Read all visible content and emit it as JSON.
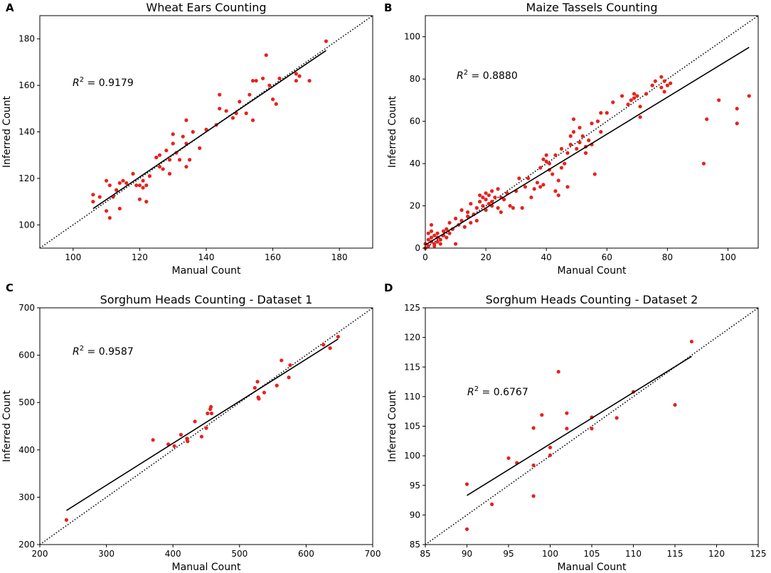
{
  "chart_data": [
    {
      "panel": "A",
      "type": "scatter",
      "title": "Wheat Ears Counting",
      "xlabel": "Manual Count",
      "ylabel": "Inferred Count",
      "xlim": [
        90,
        190
      ],
      "ylim": [
        90,
        190
      ],
      "xticks": [
        100,
        120,
        140,
        160,
        180
      ],
      "yticks": [
        100,
        120,
        140,
        160,
        180
      ],
      "r2_label": "R",
      "r2_sup": "2",
      "r2_value": " = 0.9179",
      "fit_line": [
        [
          106,
          107
        ],
        [
          176,
          175
        ]
      ],
      "identity_line": true,
      "points": [
        [
          106,
          113
        ],
        [
          106,
          110
        ],
        [
          108,
          112
        ],
        [
          110,
          119
        ],
        [
          110,
          106
        ],
        [
          111,
          103
        ],
        [
          111,
          117
        ],
        [
          112,
          112
        ],
        [
          113,
          115
        ],
        [
          114,
          107
        ],
        [
          114,
          118
        ],
        [
          115,
          119
        ],
        [
          116,
          118
        ],
        [
          118,
          122
        ],
        [
          119,
          117
        ],
        [
          120,
          117
        ],
        [
          120,
          111
        ],
        [
          121,
          119
        ],
        [
          121,
          116
        ],
        [
          122,
          117
        ],
        [
          122,
          110
        ],
        [
          123,
          121
        ],
        [
          125,
          129
        ],
        [
          125,
          129
        ],
        [
          126,
          125
        ],
        [
          126,
          130
        ],
        [
          127,
          124
        ],
        [
          128,
          132
        ],
        [
          129,
          122
        ],
        [
          129,
          128
        ],
        [
          130,
          135
        ],
        [
          130,
          139
        ],
        [
          131,
          131
        ],
        [
          132,
          128
        ],
        [
          133,
          138
        ],
        [
          134,
          125
        ],
        [
          134,
          145
        ],
        [
          134,
          135
        ],
        [
          135,
          128
        ],
        [
          136,
          140
        ],
        [
          138,
          133
        ],
        [
          140,
          141
        ],
        [
          143,
          143
        ],
        [
          144,
          156
        ],
        [
          144,
          150
        ],
        [
          146,
          149
        ],
        [
          148,
          146
        ],
        [
          149,
          148
        ],
        [
          150,
          153
        ],
        [
          152,
          148
        ],
        [
          153,
          156
        ],
        [
          154,
          145
        ],
        [
          154,
          162
        ],
        [
          155,
          162
        ],
        [
          157,
          163
        ],
        [
          158,
          173
        ],
        [
          159,
          160
        ],
        [
          160,
          154
        ],
        [
          161,
          152
        ],
        [
          162,
          163
        ],
        [
          167,
          165
        ],
        [
          167,
          162
        ],
        [
          168,
          164
        ],
        [
          171,
          162
        ],
        [
          176,
          179
        ]
      ]
    },
    {
      "panel": "B",
      "type": "scatter",
      "title": "Maize Tassels Counting",
      "xlabel": "Manual Count",
      "ylabel": "Inferred Count",
      "xlim": [
        0,
        110
      ],
      "ylim": [
        0,
        110
      ],
      "xticks": [
        0,
        20,
        40,
        60,
        80,
        100
      ],
      "yticks": [
        0,
        20,
        40,
        60,
        80,
        100
      ],
      "r2_label": "R",
      "r2_sup": "2",
      "r2_value": " = 0.8880",
      "fit_line": [
        [
          0,
          1.5
        ],
        [
          107,
          95
        ]
      ],
      "identity_line": true,
      "points": [
        [
          0,
          0
        ],
        [
          0,
          2
        ],
        [
          1,
          1
        ],
        [
          1,
          4
        ],
        [
          1,
          7
        ],
        [
          2,
          3
        ],
        [
          2,
          5
        ],
        [
          2,
          8
        ],
        [
          2,
          11
        ],
        [
          3,
          2
        ],
        [
          3,
          6
        ],
        [
          3,
          1
        ],
        [
          4,
          3
        ],
        [
          4,
          5
        ],
        [
          4,
          7
        ],
        [
          5,
          4
        ],
        [
          5,
          2
        ],
        [
          6,
          6
        ],
        [
          6,
          8
        ],
        [
          7,
          5
        ],
        [
          7,
          9
        ],
        [
          8,
          7
        ],
        [
          8,
          12
        ],
        [
          9,
          9
        ],
        [
          10,
          2
        ],
        [
          10,
          14
        ],
        [
          11,
          11
        ],
        [
          12,
          13
        ],
        [
          12,
          18
        ],
        [
          13,
          10
        ],
        [
          14,
          15
        ],
        [
          14,
          17
        ],
        [
          15,
          12
        ],
        [
          15,
          21
        ],
        [
          16,
          16
        ],
        [
          17,
          19
        ],
        [
          17,
          13
        ],
        [
          18,
          22
        ],
        [
          18,
          25
        ],
        [
          19,
          20
        ],
        [
          19,
          24
        ],
        [
          20,
          18
        ],
        [
          20,
          23
        ],
        [
          20,
          26
        ],
        [
          21,
          21
        ],
        [
          21,
          25
        ],
        [
          22,
          20
        ],
        [
          22,
          22
        ],
        [
          22,
          27
        ],
        [
          23,
          24
        ],
        [
          24,
          19
        ],
        [
          24,
          28
        ],
        [
          25,
          17
        ],
        [
          25,
          24
        ],
        [
          26,
          23
        ],
        [
          27,
          26
        ],
        [
          28,
          20
        ],
        [
          29,
          19
        ],
        [
          30,
          27
        ],
        [
          31,
          33
        ],
        [
          32,
          19
        ],
        [
          33,
          29
        ],
        [
          34,
          33
        ],
        [
          35,
          24
        ],
        [
          36,
          28
        ],
        [
          37,
          31
        ],
        [
          38,
          38
        ],
        [
          38,
          29
        ],
        [
          39,
          42
        ],
        [
          39,
          30
        ],
        [
          40,
          41
        ],
        [
          40,
          44
        ],
        [
          41,
          37
        ],
        [
          41,
          40
        ],
        [
          42,
          35
        ],
        [
          43,
          44
        ],
        [
          43,
          27
        ],
        [
          44,
          25
        ],
        [
          44,
          32
        ],
        [
          45,
          38
        ],
        [
          45,
          47
        ],
        [
          46,
          40
        ],
        [
          47,
          29
        ],
        [
          47,
          45
        ],
        [
          48,
          53
        ],
        [
          48,
          49
        ],
        [
          49,
          55
        ],
        [
          49,
          61
        ],
        [
          50,
          47
        ],
        [
          51,
          50
        ],
        [
          51,
          57
        ],
        [
          52,
          53
        ],
        [
          53,
          48
        ],
        [
          53,
          45
        ],
        [
          54,
          51
        ],
        [
          55,
          49
        ],
        [
          55,
          59
        ],
        [
          56,
          35
        ],
        [
          57,
          60
        ],
        [
          58,
          64
        ],
        [
          58,
          55
        ],
        [
          60,
          64
        ],
        [
          62,
          69
        ],
        [
          65,
          72
        ],
        [
          67,
          68
        ],
        [
          68,
          70
        ],
        [
          69,
          73
        ],
        [
          69,
          71
        ],
        [
          70,
          72
        ],
        [
          71,
          62
        ],
        [
          71,
          67
        ],
        [
          73,
          73
        ],
        [
          75,
          77
        ],
        [
          76,
          79
        ],
        [
          78,
          76
        ],
        [
          78,
          81
        ],
        [
          79,
          74
        ],
        [
          79,
          79
        ],
        [
          80,
          77
        ],
        [
          81,
          78
        ],
        [
          92,
          40
        ],
        [
          93,
          61
        ],
        [
          97,
          70
        ],
        [
          103,
          59
        ],
        [
          103,
          66
        ],
        [
          107,
          72
        ]
      ]
    },
    {
      "panel": "C",
      "type": "scatter",
      "title": "Sorghum Heads Counting - Dataset 1",
      "xlabel": "Manual Count",
      "ylabel": "Inferred Count",
      "xlim": [
        200,
        700
      ],
      "ylim": [
        200,
        700
      ],
      "xticks": [
        200,
        300,
        400,
        500,
        600,
        700
      ],
      "yticks": [
        200,
        300,
        400,
        500,
        600,
        700
      ],
      "r2_label": "R",
      "r2_sup": "2",
      "r2_value": " = 0.9587",
      "fit_line": [
        [
          240,
          272
        ],
        [
          648,
          634
        ]
      ],
      "identity_line": true,
      "points": [
        [
          240,
          252
        ],
        [
          370,
          421
        ],
        [
          393,
          412
        ],
        [
          402,
          408
        ],
        [
          412,
          432
        ],
        [
          421,
          424
        ],
        [
          422,
          418
        ],
        [
          433,
          460
        ],
        [
          443,
          428
        ],
        [
          450,
          446
        ],
        [
          452,
          477
        ],
        [
          456,
          486
        ],
        [
          457,
          491
        ],
        [
          458,
          477
        ],
        [
          523,
          531
        ],
        [
          527,
          544
        ],
        [
          528,
          511
        ],
        [
          529,
          508
        ],
        [
          537,
          521
        ],
        [
          556,
          536
        ],
        [
          563,
          589
        ],
        [
          574,
          553
        ],
        [
          576,
          579
        ],
        [
          626,
          622
        ],
        [
          636,
          615
        ],
        [
          648,
          639
        ]
      ]
    },
    {
      "panel": "D",
      "type": "scatter",
      "title": "Sorghum Heads Counting - Dataset 2",
      "xlabel": "Manual Count",
      "ylabel": "Inferred Count",
      "xlim": [
        85,
        125
      ],
      "ylim": [
        85,
        125
      ],
      "xticks": [
        85,
        90,
        95,
        100,
        105,
        110,
        115,
        120,
        125
      ],
      "yticks": [
        85,
        90,
        95,
        100,
        105,
        110,
        115,
        120,
        125
      ],
      "r2_label": "R",
      "r2_sup": "2",
      "r2_value": " = 0.6767",
      "fit_line": [
        [
          90,
          93.3
        ],
        [
          117,
          116.8
        ]
      ],
      "identity_line": true,
      "points": [
        [
          90,
          95.2
        ],
        [
          90,
          87.6
        ],
        [
          93,
          91.8
        ],
        [
          95,
          99.6
        ],
        [
          96,
          98.8
        ],
        [
          98,
          104.7
        ],
        [
          98,
          98.4
        ],
        [
          98,
          93.2
        ],
        [
          99,
          106.9
        ],
        [
          100,
          101.4
        ],
        [
          100,
          100.1
        ],
        [
          101,
          114.2
        ],
        [
          102,
          107.2
        ],
        [
          102,
          104.6
        ],
        [
          105,
          106.5
        ],
        [
          105,
          104.6
        ],
        [
          108,
          106.4
        ],
        [
          110,
          110.8
        ],
        [
          115,
          108.6
        ],
        [
          117,
          119.3
        ]
      ]
    }
  ]
}
